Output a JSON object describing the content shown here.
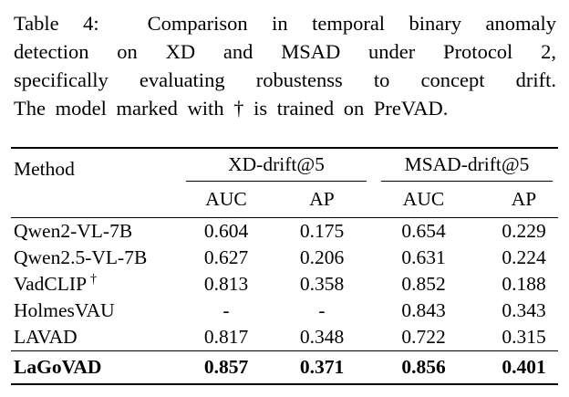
{
  "caption": {
    "lines": [
      "Table 4:  Comparison in temporal binary anomaly",
      "detection on XD and MSAD under Protocol 2,",
      "specifically evaluating robustenss to concept drift.",
      "The model marked with † is trained on PreVAD."
    ]
  },
  "table": {
    "method_header": "Method",
    "group_headers": [
      "XD-drift@5",
      "MSAD-drift@5"
    ],
    "subheaders": [
      "AUC",
      "AP",
      "AUC",
      "AP"
    ],
    "rows": [
      {
        "method": "Qwen2-VL-7B",
        "sup": "",
        "xd_auc": "0.604",
        "xd_ap": "0.175",
        "msad_auc": "0.654",
        "msad_ap": "0.229"
      },
      {
        "method": "Qwen2.5-VL-7B",
        "sup": "",
        "xd_auc": "0.627",
        "xd_ap": "0.206",
        "msad_auc": "0.631",
        "msad_ap": "0.224"
      },
      {
        "method": "VadCLIP",
        "sup": "†",
        "xd_auc": "0.813",
        "xd_ap": "0.358",
        "msad_auc": "0.852",
        "msad_ap": "0.188"
      },
      {
        "method": "HolmesVAU",
        "sup": "",
        "xd_auc": "-",
        "xd_ap": "-",
        "msad_auc": "0.843",
        "msad_ap": "0.343"
      },
      {
        "method": "LAVAD",
        "sup": "",
        "xd_auc": "0.817",
        "xd_ap": "0.348",
        "msad_auc": "0.722",
        "msad_ap": "0.315"
      }
    ],
    "final_row": {
      "method": "LaGoVAD",
      "sup": "",
      "xd_auc": "0.857",
      "xd_ap": "0.371",
      "msad_auc": "0.856",
      "msad_ap": "0.401"
    }
  },
  "colors": {
    "text": "#000000",
    "rule": "#000000",
    "background": "#ffffff"
  }
}
